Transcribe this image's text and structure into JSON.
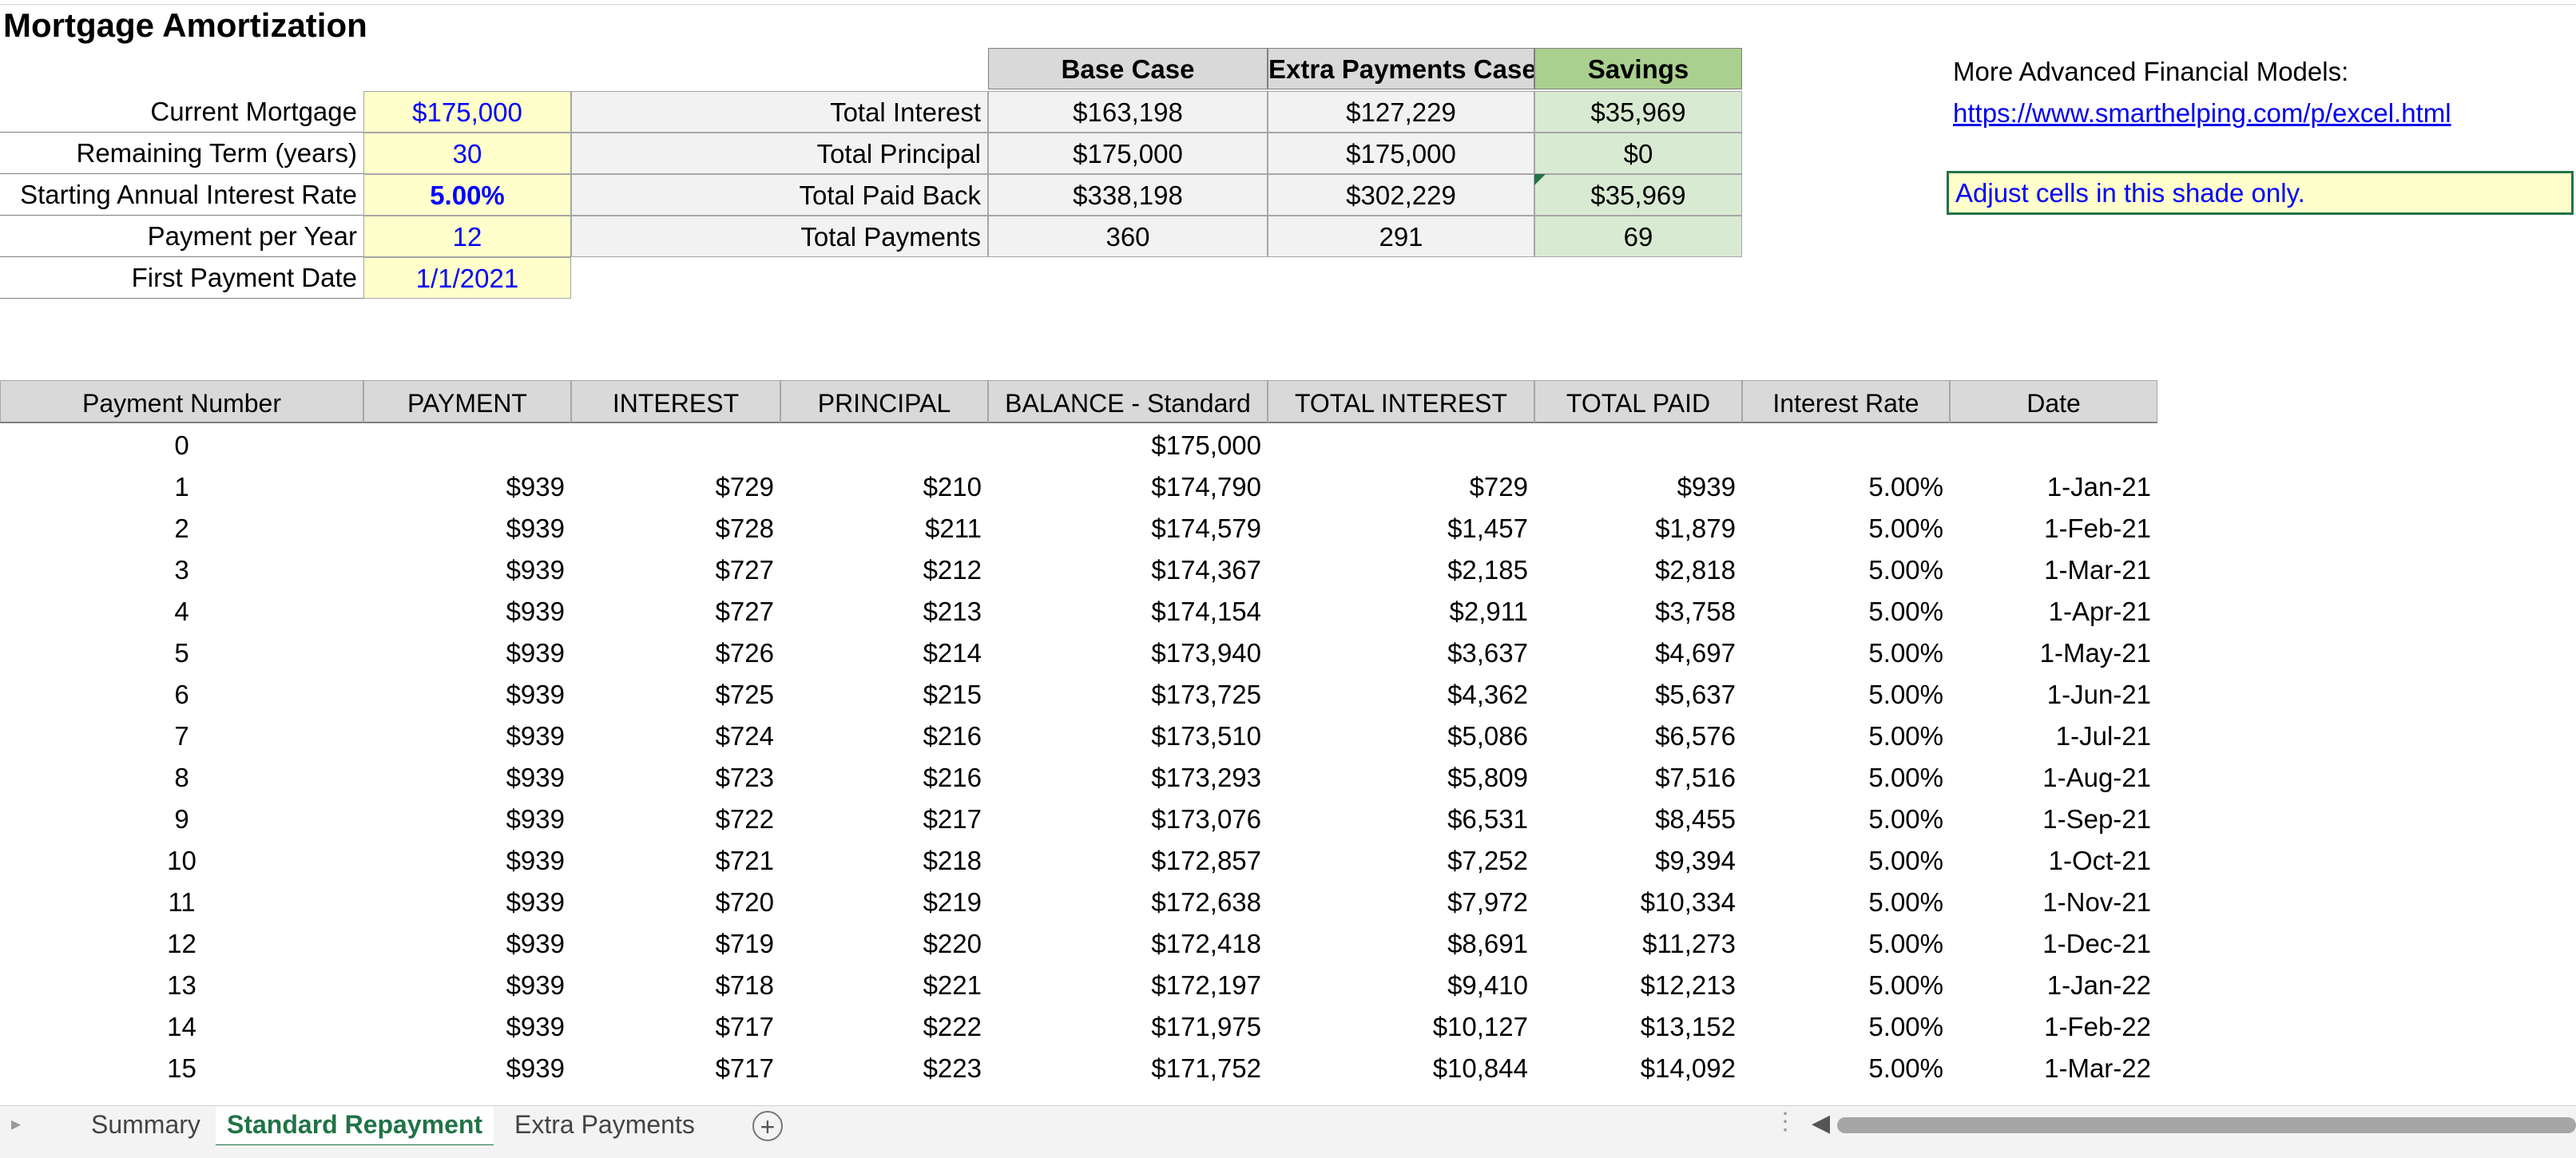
{
  "title": "Mortgage Amortization",
  "inputs": [
    {
      "label": "Current Mortgage",
      "value": "$175,000",
      "bold": false
    },
    {
      "label": "Remaining Term (years)",
      "value": "30",
      "bold": false
    },
    {
      "label": "Starting Annual Interest Rate",
      "value": "5.00%",
      "bold": true
    },
    {
      "label": "Payment per Year",
      "value": "12",
      "bold": false
    },
    {
      "label": "First Payment Date",
      "value": "1/1/2021",
      "bold": false
    }
  ],
  "comparison": {
    "headers": [
      "Base Case",
      "Extra Payments Case",
      "Savings"
    ],
    "rows": [
      {
        "label": "Total Interest",
        "base": "$163,198",
        "extra": "$127,229",
        "savings": "$35,969"
      },
      {
        "label": "Total Principal",
        "base": "$175,000",
        "extra": "$175,000",
        "savings": "$0"
      },
      {
        "label": "Total Paid Back",
        "base": "$338,198",
        "extra": "$302,229",
        "savings": "$35,969"
      },
      {
        "label": "Total Payments",
        "base": "360",
        "extra": "291",
        "savings": "69"
      }
    ]
  },
  "sidebar": {
    "more_models": "More Advanced Financial Models:",
    "link": "https://www.smarthelping.com/p/excel.html",
    "note": "Adjust cells in this shade only."
  },
  "schedule": {
    "headers": [
      "Payment Number",
      "PAYMENT",
      "INTEREST",
      "PRINCIPAL",
      "BALANCE - Standard",
      "TOTAL INTEREST",
      "TOTAL PAID",
      "Interest Rate",
      "Date"
    ],
    "row0": {
      "num": "0",
      "balance": "$175,000"
    },
    "rows": [
      [
        "1",
        "$939",
        "$729",
        "$210",
        "$174,790",
        "$729",
        "$939",
        "5.00%",
        "1-Jan-21"
      ],
      [
        "2",
        "$939",
        "$728",
        "$211",
        "$174,579",
        "$1,457",
        "$1,879",
        "5.00%",
        "1-Feb-21"
      ],
      [
        "3",
        "$939",
        "$727",
        "$212",
        "$174,367",
        "$2,185",
        "$2,818",
        "5.00%",
        "1-Mar-21"
      ],
      [
        "4",
        "$939",
        "$727",
        "$213",
        "$174,154",
        "$2,911",
        "$3,758",
        "5.00%",
        "1-Apr-21"
      ],
      [
        "5",
        "$939",
        "$726",
        "$214",
        "$173,940",
        "$3,637",
        "$4,697",
        "5.00%",
        "1-May-21"
      ],
      [
        "6",
        "$939",
        "$725",
        "$215",
        "$173,725",
        "$4,362",
        "$5,637",
        "5.00%",
        "1-Jun-21"
      ],
      [
        "7",
        "$939",
        "$724",
        "$216",
        "$173,510",
        "$5,086",
        "$6,576",
        "5.00%",
        "1-Jul-21"
      ],
      [
        "8",
        "$939",
        "$723",
        "$216",
        "$173,293",
        "$5,809",
        "$7,516",
        "5.00%",
        "1-Aug-21"
      ],
      [
        "9",
        "$939",
        "$722",
        "$217",
        "$173,076",
        "$6,531",
        "$8,455",
        "5.00%",
        "1-Sep-21"
      ],
      [
        "10",
        "$939",
        "$721",
        "$218",
        "$172,857",
        "$7,252",
        "$9,394",
        "5.00%",
        "1-Oct-21"
      ],
      [
        "11",
        "$939",
        "$720",
        "$219",
        "$172,638",
        "$7,972",
        "$10,334",
        "5.00%",
        "1-Nov-21"
      ],
      [
        "12",
        "$939",
        "$719",
        "$220",
        "$172,418",
        "$8,691",
        "$11,273",
        "5.00%",
        "1-Dec-21"
      ],
      [
        "13",
        "$939",
        "$718",
        "$221",
        "$172,197",
        "$9,410",
        "$12,213",
        "5.00%",
        "1-Jan-22"
      ],
      [
        "14",
        "$939",
        "$717",
        "$222",
        "$171,975",
        "$10,127",
        "$13,152",
        "5.00%",
        "1-Feb-22"
      ],
      [
        "15",
        "$939",
        "$717",
        "$223",
        "$171,752",
        "$10,844",
        "$14,092",
        "5.00%",
        "1-Mar-22"
      ]
    ]
  },
  "tabs": {
    "summary": "Summary",
    "standard": "Standard Repayment",
    "extra": "Extra Payments",
    "add": "+"
  },
  "colors": {
    "input_fill": "#ffffcc",
    "input_text": "#0000ff",
    "savings_header": "#a9d08e",
    "savings_fill": "#d9ead3",
    "header_grey": "#d9d9d9",
    "active_tab": "#217346"
  }
}
